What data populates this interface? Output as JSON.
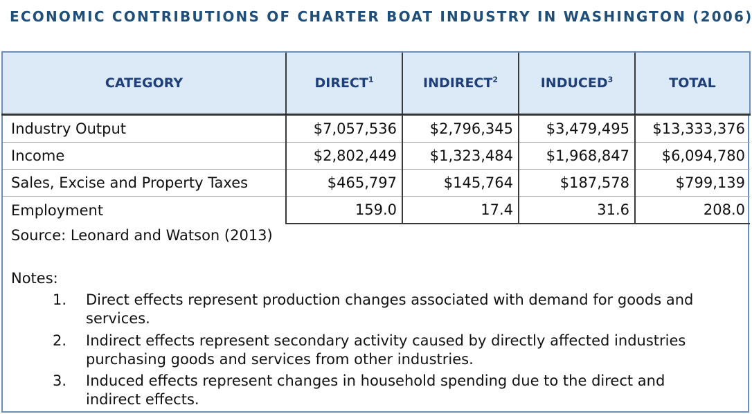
{
  "title": "ECONOMIC CONTRIBUTIONS OF CHARTER BOAT INDUSTRY IN WASHINGTON (2006)",
  "table": {
    "headers": [
      {
        "label": "CATEGORY",
        "sup": ""
      },
      {
        "label": "DIRECT",
        "sup": "1"
      },
      {
        "label": "INDIRECT",
        "sup": "2"
      },
      {
        "label": "INDUCED",
        "sup": "3"
      },
      {
        "label": "TOTAL",
        "sup": ""
      }
    ],
    "rows": [
      [
        "Industry Output",
        "$7,057,536",
        "$2,796,345",
        "$3,479,495",
        "$13,333,376"
      ],
      [
        "Income",
        "$2,802,449",
        "$1,323,484",
        "$1,968,847",
        "$6,094,780"
      ],
      [
        "Sales, Excise and Property Taxes",
        "$465,797",
        "$145,764",
        "$187,578",
        "$799,139"
      ],
      [
        "Employment",
        "159.0",
        "17.4",
        "31.6",
        "208.0"
      ]
    ]
  },
  "source": "Source: Leonard and Watson (2013)",
  "notes_heading": "Notes:",
  "notes": [
    {
      "num": "1.",
      "text": "Direct effects represent production changes associated with demand for goods and services."
    },
    {
      "num": "2.",
      "text": "Indirect effects represent secondary activity caused by directly affected industries purchasing goods and services from other industries."
    },
    {
      "num": "3.",
      "text": "Induced effects represent changes in household spending due to the direct and indirect effects."
    }
  ],
  "colors": {
    "title": "#1f4e79",
    "header_bg": "#dce9f6",
    "header_text": "#1f3f7a",
    "frame": "#6b8fb8"
  }
}
